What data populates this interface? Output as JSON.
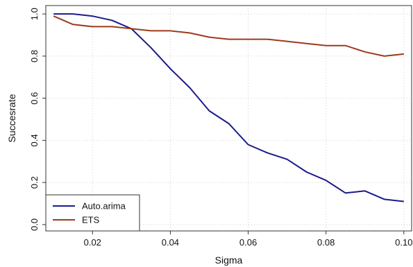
{
  "chart_data": {
    "type": "line",
    "xlabel": "Sigma",
    "ylabel": "Succesrate",
    "xlim": [
      0.008,
      0.102
    ],
    "ylim": [
      -0.03,
      1.04
    ],
    "xticks": [
      0.02,
      0.04,
      0.06,
      0.08,
      0.1
    ],
    "xtick_labels": [
      "0.02",
      "0.04",
      "0.06",
      "0.08",
      "0.10"
    ],
    "yticks": [
      0.0,
      0.2,
      0.4,
      0.6,
      0.8,
      1.0
    ],
    "ytick_labels": [
      "0.0",
      "0.2",
      "0.4",
      "0.6",
      "0.8",
      "1.0"
    ],
    "grid": true,
    "legend_position": "bottom-left",
    "x": [
      0.01,
      0.015,
      0.02,
      0.025,
      0.03,
      0.035,
      0.04,
      0.045,
      0.05,
      0.055,
      0.06,
      0.065,
      0.07,
      0.075,
      0.08,
      0.085,
      0.09,
      0.095,
      0.1
    ],
    "series": [
      {
        "name": "Auto.arima",
        "color": "#1a1a8c",
        "values": [
          1.0,
          1.0,
          0.99,
          0.97,
          0.93,
          0.84,
          0.74,
          0.65,
          0.54,
          0.48,
          0.38,
          0.34,
          0.31,
          0.25,
          0.21,
          0.15,
          0.16,
          0.12,
          0.11
        ]
      },
      {
        "name": "ETS",
        "color": "#9c3a1a",
        "values": [
          0.99,
          0.95,
          0.94,
          0.94,
          0.93,
          0.92,
          0.92,
          0.91,
          0.89,
          0.88,
          0.88,
          0.88,
          0.87,
          0.86,
          0.85,
          0.85,
          0.82,
          0.8,
          0.81
        ]
      }
    ]
  }
}
